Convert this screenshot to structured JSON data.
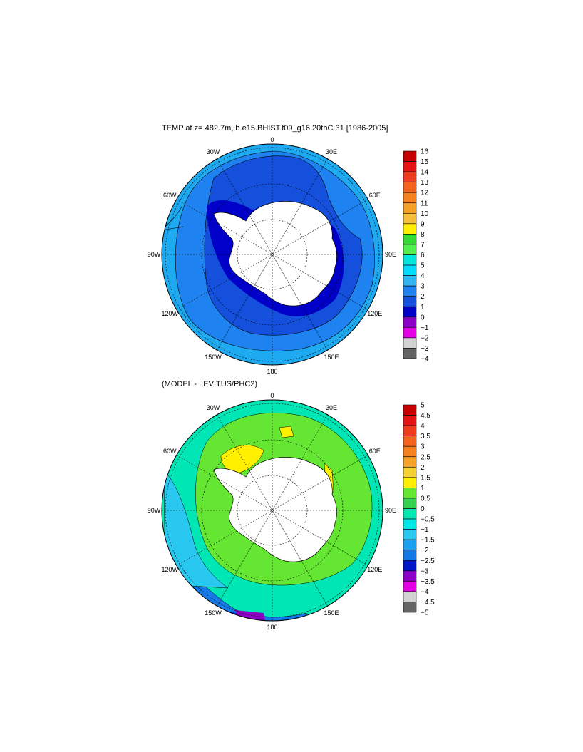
{
  "panels": [
    {
      "id": "temp",
      "title": "TEMP at z= 482.7m, b.e15.BHIST.f09_g16.20thC.31 [1986-2005]",
      "lon_labels": [
        "0",
        "30E",
        "60E",
        "90E",
        "120E",
        "150E",
        "180",
        "150W",
        "120W",
        "90W",
        "60W",
        "30W"
      ],
      "colorbar": {
        "labels": [
          "16",
          "15",
          "14",
          "13",
          "12",
          "11",
          "10",
          "9",
          "8",
          "7",
          "6",
          "5",
          "4",
          "3",
          "2",
          "1",
          "0",
          "−1",
          "−2",
          "−3",
          "−4"
        ],
        "colors": [
          "#c80000",
          "#e61414",
          "#f03c1e",
          "#f5641e",
          "#f5821e",
          "#f5a028",
          "#f5be3c",
          "#fff000",
          "#32dc32",
          "#50f050",
          "#00e6dc",
          "#00dcff",
          "#32b4f0",
          "#1e82f0",
          "#1450dc",
          "#0000c8",
          "#8c00c8",
          "#e600e6",
          "#d2d2d2",
          "#646464"
        ]
      }
    },
    {
      "id": "diff",
      "title": "(MODEL - LEVITUS/PHC2)",
      "lon_labels": [
        "0",
        "30E",
        "60E",
        "90E",
        "120E",
        "150E",
        "180",
        "150W",
        "120W",
        "90W",
        "60W",
        "30W"
      ],
      "colorbar": {
        "labels": [
          "5",
          "4.5",
          "4",
          "3.5",
          "3",
          "2.5",
          "2",
          "1.5",
          "1",
          "0.5",
          "0",
          "−0.5",
          "−1",
          "−1.5",
          "−2",
          "−2.5",
          "−3",
          "−3.5",
          "−4",
          "−4.5",
          "−5"
        ],
        "colors": [
          "#c80000",
          "#e61414",
          "#f03c1e",
          "#f5641e",
          "#f5821e",
          "#f5a028",
          "#f5d232",
          "#fff000",
          "#64e632",
          "#32d250",
          "#00e6b4",
          "#00e6e6",
          "#28c8f0",
          "#1ea0f0",
          "#1478e6",
          "#0014c8",
          "#8c00c8",
          "#e600e6",
          "#d2d2d2",
          "#646464"
        ]
      }
    }
  ]
}
